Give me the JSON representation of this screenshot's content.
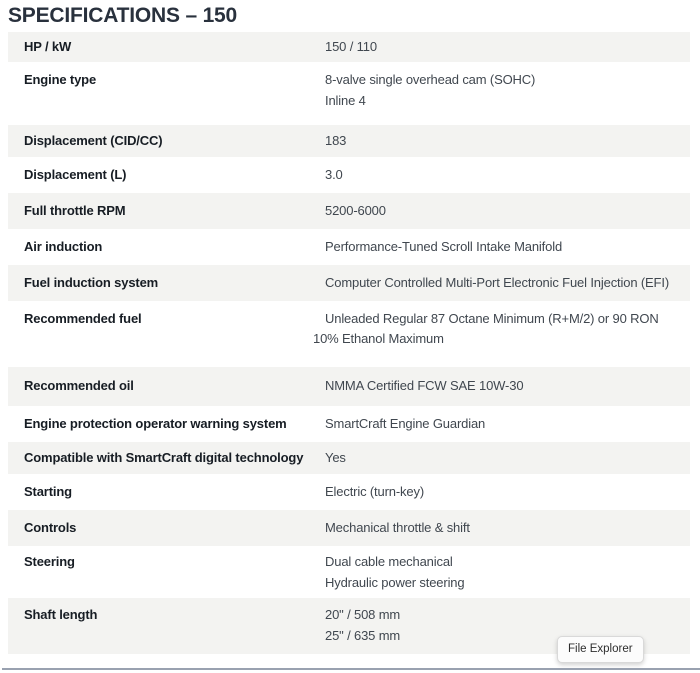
{
  "page": {
    "title": "SPECIFICATIONS – 150"
  },
  "table": {
    "rows": [
      {
        "label": "HP / kW",
        "values": [
          "150 / 110"
        ]
      },
      {
        "label": "Engine type",
        "values": [
          "8-valve single overhead cam (SOHC)",
          "Inline 4"
        ]
      },
      {
        "label": "Displacement (CID/CC)",
        "values": [
          "183"
        ]
      },
      {
        "label": "Displacement (L)",
        "values": [
          "3.0"
        ]
      },
      {
        "label": "Full throttle RPM",
        "values": [
          "5200-6000"
        ]
      },
      {
        "label": "Air induction",
        "values": [
          "Performance-Tuned Scroll Intake Manifold"
        ]
      },
      {
        "label": "Fuel induction system",
        "values": [
          "Computer Controlled Multi-Port Electronic Fuel Injection (EFI)"
        ]
      },
      {
        "label": "Recommended fuel",
        "values": [
          "Unleaded Regular 87 Octane Minimum (R+M/2) or 90 RON 10% Ethanol Maximum"
        ]
      },
      {
        "label": "Recommended oil",
        "values": [
          "NMMA Certified FCW SAE 10W-30"
        ]
      },
      {
        "label": "Engine protection operator warning system",
        "values": [
          "SmartCraft Engine Guardian"
        ]
      },
      {
        "label": "Compatible with SmartCraft digital technology",
        "values": [
          "Yes"
        ]
      },
      {
        "label": "Starting",
        "values": [
          "Electric (turn-key)"
        ]
      },
      {
        "label": "Controls",
        "values": [
          "Mechanical throttle & shift"
        ]
      },
      {
        "label": "Steering",
        "values": [
          "Dual cable mechanical",
          "Hydraulic power steering"
        ]
      },
      {
        "label": "Shaft length",
        "values": [
          "20\" / 508 mm",
          "25\" / 635 mm"
        ]
      }
    ]
  },
  "file_explorer": {
    "label": "File Explorer"
  },
  "colors": {
    "title_text": "#29313d",
    "label_text": "#171d24",
    "value_text": "#40474f",
    "row_stripe": "#f3f3f1",
    "bottom_line": "#99a1b0",
    "chip_background": "#fcfcfc",
    "chip_border": "#d9d9d9"
  }
}
